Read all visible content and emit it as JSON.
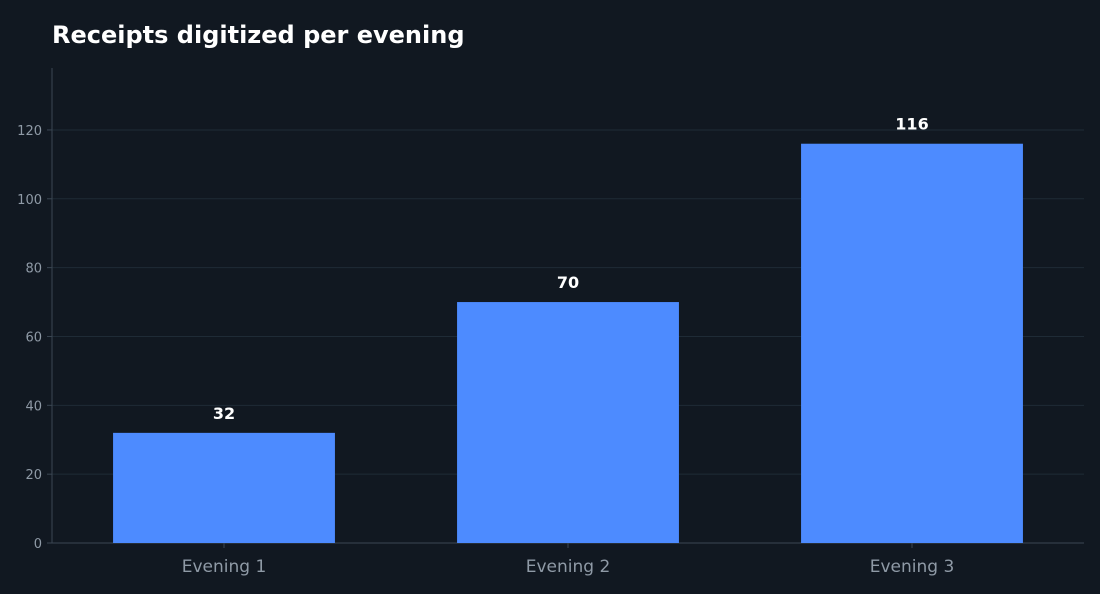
{
  "chart_data": {
    "type": "bar",
    "title": "Receipts digitized per evening",
    "xlabel": "",
    "ylabel": "",
    "categories": [
      "Evening 1",
      "Evening 2",
      "Evening 3"
    ],
    "values": [
      32,
      70,
      116
    ],
    "ylim": [
      0,
      138
    ],
    "yticks": [
      0,
      20,
      40,
      60,
      80,
      100,
      120
    ],
    "grid": true,
    "legend": "none",
    "data_labels": true
  },
  "colors": {
    "background": "#111821",
    "bar": "#4d8bff",
    "grid": "#1f2b36",
    "axis": "#3a4652",
    "tick_text": "#8f9aa6",
    "title_text": "#ffffff"
  }
}
